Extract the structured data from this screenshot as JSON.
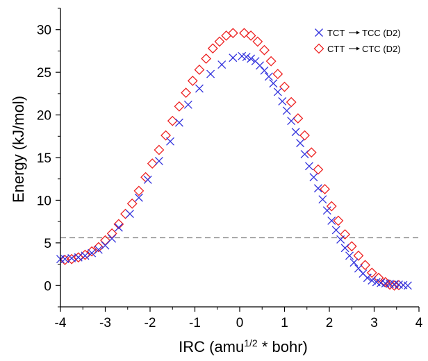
{
  "chart_data": {
    "type": "scatter",
    "title": "",
    "xlabel_prefix": "IRC (amu",
    "xlabel_sup": "1/2",
    "xlabel_suffix": " * bohr)",
    "ylabel": "Energy  (kJ/mol)",
    "xlim": [
      -4,
      4
    ],
    "ylim": [
      -2.5,
      32.5
    ],
    "xticks": [
      -4,
      -3,
      -2,
      -1,
      0,
      1,
      2,
      3,
      4
    ],
    "yticks": [
      0,
      5,
      10,
      15,
      20,
      25,
      30
    ],
    "grid": false,
    "legend_position": "top-right",
    "reference_line": {
      "y": 5.6,
      "style": "dashed",
      "color": "#808080"
    },
    "series": [
      {
        "name": "TCT → TCC (D2)",
        "legend_from": "TCT",
        "legend_to": "TCC (D2)",
        "marker": "x",
        "color": "#3333dd",
        "points": [
          [
            -4.0,
            3.1
          ],
          [
            -3.9,
            3.1
          ],
          [
            -3.75,
            3.2
          ],
          [
            -3.6,
            3.3
          ],
          [
            -3.45,
            3.5
          ],
          [
            -3.3,
            3.8
          ],
          [
            -3.15,
            4.2
          ],
          [
            -3.0,
            4.7
          ],
          [
            -2.85,
            5.5
          ],
          [
            -2.7,
            6.8
          ],
          [
            -2.45,
            8.4
          ],
          [
            -2.25,
            10.3
          ],
          [
            -2.05,
            12.4
          ],
          [
            -1.8,
            14.6
          ],
          [
            -1.55,
            16.9
          ],
          [
            -1.35,
            19.1
          ],
          [
            -1.15,
            21.2
          ],
          [
            -0.9,
            23.1
          ],
          [
            -0.65,
            24.8
          ],
          [
            -0.4,
            25.9
          ],
          [
            -0.15,
            26.7
          ],
          [
            0.05,
            26.9
          ],
          [
            0.15,
            26.8
          ],
          [
            0.25,
            26.6
          ],
          [
            0.35,
            26.3
          ],
          [
            0.45,
            25.8
          ],
          [
            0.55,
            25.2
          ],
          [
            0.65,
            24.5
          ],
          [
            0.75,
            23.7
          ],
          [
            0.85,
            22.7
          ],
          [
            0.95,
            21.6
          ],
          [
            1.05,
            20.5
          ],
          [
            1.15,
            19.3
          ],
          [
            1.25,
            18.0
          ],
          [
            1.35,
            16.7
          ],
          [
            1.45,
            15.4
          ],
          [
            1.55,
            14.0
          ],
          [
            1.65,
            12.7
          ],
          [
            1.75,
            11.4
          ],
          [
            1.85,
            10.1
          ],
          [
            1.95,
            8.8
          ],
          [
            2.05,
            7.6
          ],
          [
            2.15,
            6.5
          ],
          [
            2.25,
            5.4
          ],
          [
            2.35,
            4.4
          ],
          [
            2.45,
            3.5
          ],
          [
            2.55,
            2.7
          ],
          [
            2.65,
            2.0
          ],
          [
            2.75,
            1.4
          ],
          [
            2.85,
            0.9
          ],
          [
            2.95,
            0.6
          ],
          [
            3.05,
            0.4
          ],
          [
            3.15,
            0.3
          ],
          [
            3.25,
            0.25
          ],
          [
            3.35,
            0.2
          ],
          [
            3.45,
            0.15
          ],
          [
            3.55,
            0.1
          ],
          [
            3.65,
            0.05
          ],
          [
            3.75,
            0.0
          ]
        ]
      },
      {
        "name": "CTT → CTC (D2)",
        "legend_from": "CTT",
        "legend_to": "CTC (D2)",
        "marker": "diamond",
        "color": "#ee2222",
        "points": [
          [
            -3.9,
            3.0
          ],
          [
            -3.75,
            3.1
          ],
          [
            -3.6,
            3.3
          ],
          [
            -3.45,
            3.6
          ],
          [
            -3.3,
            4.0
          ],
          [
            -3.15,
            4.5
          ],
          [
            -3.0,
            5.3
          ],
          [
            -2.85,
            6.1
          ],
          [
            -2.7,
            7.2
          ],
          [
            -2.55,
            8.4
          ],
          [
            -2.4,
            9.6
          ],
          [
            -2.25,
            11.1
          ],
          [
            -2.1,
            12.7
          ],
          [
            -1.95,
            14.3
          ],
          [
            -1.8,
            15.9
          ],
          [
            -1.65,
            17.6
          ],
          [
            -1.5,
            19.3
          ],
          [
            -1.35,
            21.0
          ],
          [
            -1.2,
            22.6
          ],
          [
            -1.05,
            24.0
          ],
          [
            -0.9,
            25.3
          ],
          [
            -0.75,
            26.6
          ],
          [
            -0.6,
            27.8
          ],
          [
            -0.45,
            28.6
          ],
          [
            -0.3,
            29.3
          ],
          [
            -0.15,
            29.6
          ],
          [
            0.1,
            29.6
          ],
          [
            0.25,
            29.3
          ],
          [
            0.4,
            28.6
          ],
          [
            0.55,
            27.6
          ],
          [
            0.7,
            26.3
          ],
          [
            0.85,
            24.8
          ],
          [
            1.0,
            23.3
          ],
          [
            1.15,
            21.5
          ],
          [
            1.3,
            19.6
          ],
          [
            1.45,
            17.6
          ],
          [
            1.6,
            15.6
          ],
          [
            1.75,
            13.6
          ],
          [
            1.9,
            11.3
          ],
          [
            2.05,
            9.3
          ],
          [
            2.2,
            7.6
          ],
          [
            2.35,
            6.0
          ],
          [
            2.5,
            4.6
          ],
          [
            2.65,
            3.5
          ],
          [
            2.8,
            2.4
          ],
          [
            2.95,
            1.5
          ],
          [
            3.1,
            0.9
          ],
          [
            3.25,
            0.4
          ],
          [
            3.35,
            0.1
          ],
          [
            3.45,
            0.0
          ],
          [
            3.55,
            0.05
          ]
        ]
      }
    ]
  }
}
